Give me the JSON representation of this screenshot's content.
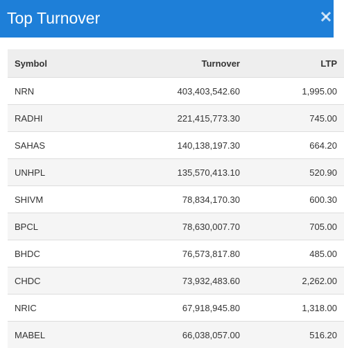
{
  "header": {
    "title": "Top Turnover",
    "close_icon": "close-icon",
    "bg_color": "#1e7fd8"
  },
  "table": {
    "columns": [
      "Symbol",
      "Turnover",
      "LTP"
    ],
    "rows": [
      {
        "symbol": "NRN",
        "turnover": "403,403,542.60",
        "ltp": "1,995.00"
      },
      {
        "symbol": "RADHI",
        "turnover": "221,415,773.30",
        "ltp": "745.00"
      },
      {
        "symbol": "SAHAS",
        "turnover": "140,138,197.30",
        "ltp": "664.20"
      },
      {
        "symbol": "UNHPL",
        "turnover": "135,570,413.10",
        "ltp": "520.90"
      },
      {
        "symbol": "SHIVM",
        "turnover": "78,834,170.30",
        "ltp": "600.30"
      },
      {
        "symbol": "BPCL",
        "turnover": "78,630,007.70",
        "ltp": "705.00"
      },
      {
        "symbol": "BHDC",
        "turnover": "76,573,817.80",
        "ltp": "485.00"
      },
      {
        "symbol": "CHDC",
        "turnover": "73,932,483.60",
        "ltp": "2,262.00"
      },
      {
        "symbol": "NRIC",
        "turnover": "67,918,945.80",
        "ltp": "1,318.00"
      },
      {
        "symbol": "MABEL",
        "turnover": "66,038,057.00",
        "ltp": "516.20"
      }
    ]
  }
}
